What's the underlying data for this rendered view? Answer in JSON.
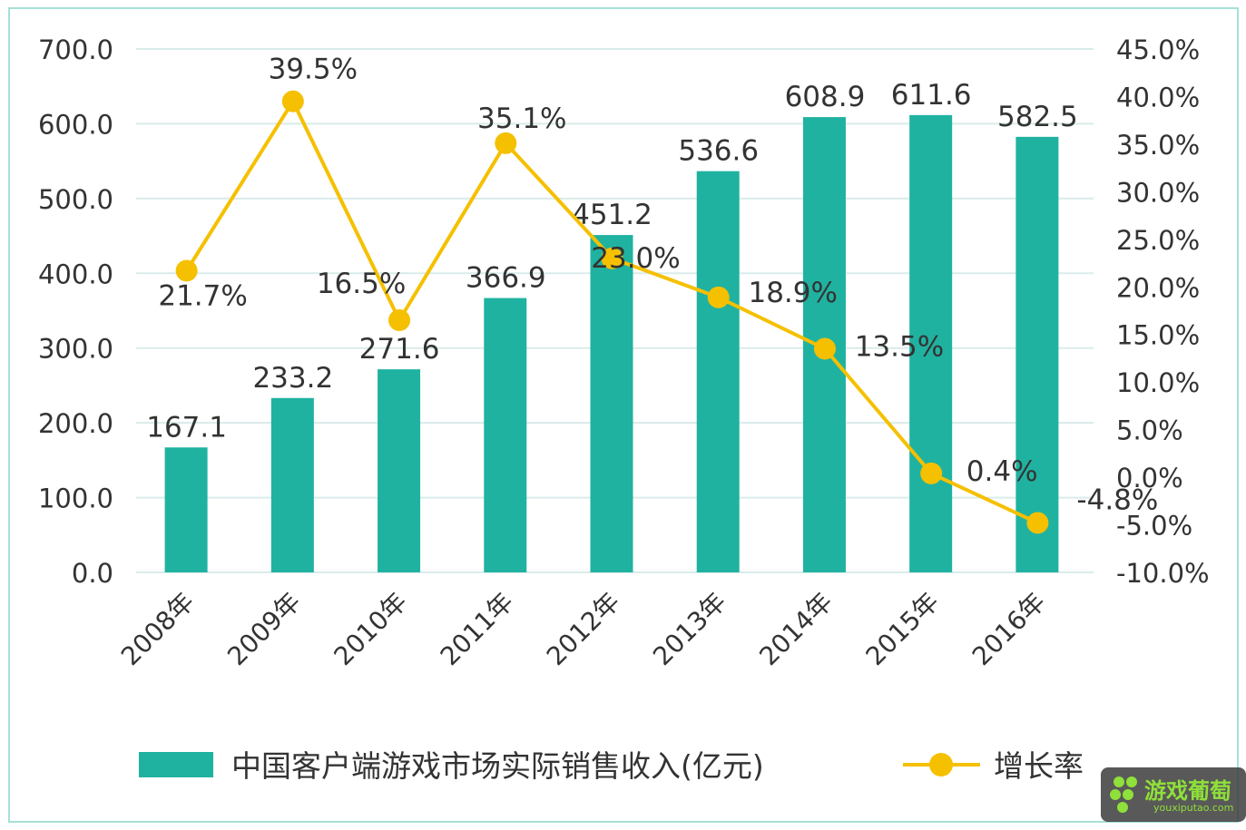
{
  "chart_data": {
    "type": "bar+line",
    "categories": [
      "2008年",
      "2009年",
      "2010年",
      "2011年",
      "2012年",
      "2013年",
      "2014年",
      "2015年",
      "2016年"
    ],
    "series": [
      {
        "name": "中国客户端游戏市场实际销售收入(亿元)",
        "type": "bar",
        "axis": "left",
        "color": "#20b2a0",
        "values": [
          167.1,
          233.2,
          271.6,
          366.9,
          451.2,
          536.6,
          608.9,
          611.6,
          582.5
        ],
        "labels": [
          "167.1",
          "233.2",
          "271.6",
          "366.9",
          "451.2",
          "536.6",
          "608.9",
          "611.6",
          "582.5"
        ]
      },
      {
        "name": "增长率",
        "type": "line",
        "axis": "right",
        "color": "#f5c000",
        "values": [
          21.7,
          39.5,
          16.5,
          35.1,
          23.0,
          18.9,
          13.5,
          0.4,
          -4.8
        ],
        "labels": [
          "21.7%",
          "39.5%",
          "16.5%",
          "35.1%",
          "23.0%",
          "18.9%",
          "13.5%",
          "0.4%",
          "-4.8%"
        ]
      }
    ],
    "y_left": {
      "range": [
        0,
        700
      ],
      "ticks": [
        "0.0",
        "100.0",
        "200.0",
        "300.0",
        "400.0",
        "500.0",
        "600.0",
        "700.0"
      ]
    },
    "y_right": {
      "range": [
        -10,
        45
      ],
      "ticks": [
        "-10.0%",
        "-5.0%",
        "0.0%",
        "5.0%",
        "10.0%",
        "15.0%",
        "20.0%",
        "25.0%",
        "30.0%",
        "35.0%",
        "40.0%",
        "45.0%"
      ]
    },
    "grid": true,
    "legend": "bottom"
  },
  "watermark": {
    "text": "游戏葡萄",
    "url": "youxiputao.com"
  }
}
